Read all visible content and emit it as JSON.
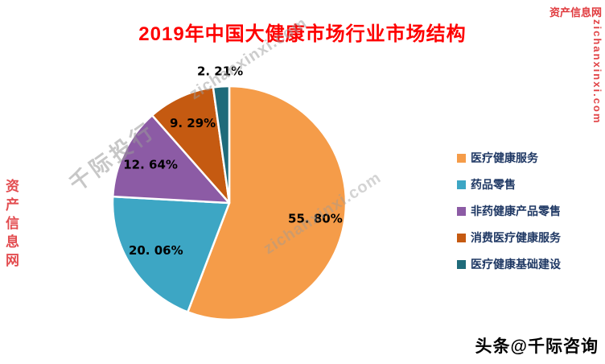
{
  "page": {
    "title": "2019年中国大健康市场行业市场结构",
    "credit": "头条@千际咨询"
  },
  "watermarks": {
    "corner_site_name": "资产信息网",
    "right_vertical_url": "zichanxinxi.com",
    "left_vertical_site_name": "资产信息网",
    "diagonal_brand": "千际投行",
    "diagonal_url_top": "zichanxinxi.com",
    "diagonal_url_mid": "zichanxinxi.com"
  },
  "chart_data": {
    "type": "pie",
    "title": "2019年中国大健康市场行业市场结构",
    "unit": "%",
    "direction": "clockwise",
    "start_angle_deg": 0,
    "legend_position": "right",
    "slices": [
      {
        "label": "医疗健康服务",
        "value": 55.8,
        "display": "55. 80%",
        "color": "#F59C49"
      },
      {
        "label": "药品零售",
        "value": 20.06,
        "display": "20. 06%",
        "color": "#3DA6C4"
      },
      {
        "label": "非药健康产品零售",
        "value": 12.64,
        "display": "12. 64%",
        "color": "#8C5BA5"
      },
      {
        "label": "消费医疗健康服务",
        "value": 9.29,
        "display": "9. 29%",
        "color": "#C55A11"
      },
      {
        "label": "医疗健康基础建设",
        "value": 2.21,
        "display": "2. 21%",
        "color": "#1F6B7A"
      }
    ]
  }
}
